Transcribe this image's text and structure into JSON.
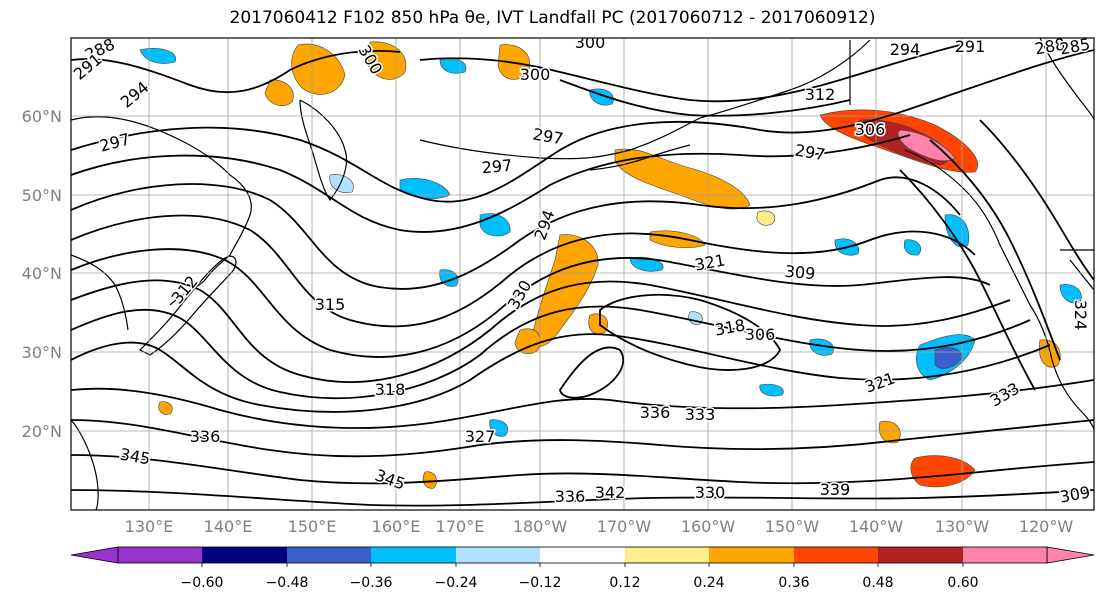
{
  "title": "2017060412 F102 850 hPa θe, IVT Landfall PC (2017060712 - 2017060912)",
  "map": {
    "lat_labels": [
      "60°N",
      "50°N",
      "40°N",
      "30°N",
      "20°N"
    ],
    "lon_labels": [
      "130°E",
      "140°E",
      "150°E",
      "160°E",
      "170°E",
      "180°W",
      "170°W",
      "160°W",
      "150°W",
      "140°W",
      "130°W",
      "120°W"
    ],
    "contour_labels": [
      "288",
      "291",
      "294",
      "297",
      "300",
      "297",
      "294",
      "297",
      "300",
      "300",
      "312",
      "297",
      "294",
      "291",
      "288",
      "285",
      "306",
      "309",
      "312",
      "315",
      "318",
      "321",
      "306",
      "318",
      "327",
      "336",
      "345",
      "345",
      "336",
      "342",
      "339",
      "333",
      "330",
      "336",
      "333",
      "309",
      "330",
      "321",
      "324"
    ]
  },
  "colorbar": {
    "ticks": [
      "−0.60",
      "−0.48",
      "−0.36",
      "−0.24",
      "−0.12",
      "0.12",
      "0.24",
      "0.36",
      "0.48",
      "0.60"
    ],
    "colors": [
      "#9932cc",
      "#000080",
      "#3a5fcd",
      "#00bfff",
      "#b0e2ff",
      "#ffffff",
      "#ffec8b",
      "#ffa500",
      "#ff4500",
      "#b22222",
      "#ff82ab"
    ]
  },
  "fill_colors": {
    "neg_light": "#b0e2ff",
    "neg_mid": "#00bfff",
    "neg_dark": "#3a5fcd",
    "pos_light": "#ffec8b",
    "pos_mid": "#ffa500",
    "pos_strong": "#ff4500",
    "pos_dark": "#b22222",
    "pos_max": "#ff82ab"
  }
}
